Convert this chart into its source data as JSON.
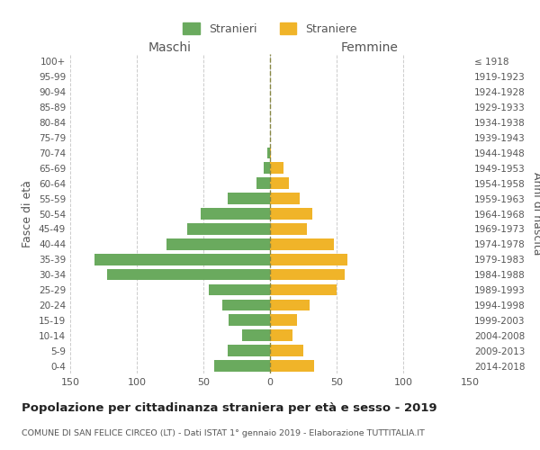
{
  "age_groups": [
    "100+",
    "95-99",
    "90-94",
    "85-89",
    "80-84",
    "75-79",
    "70-74",
    "65-69",
    "60-64",
    "55-59",
    "50-54",
    "45-49",
    "40-44",
    "35-39",
    "30-34",
    "25-29",
    "20-24",
    "15-19",
    "10-14",
    "5-9",
    "0-4"
  ],
  "birth_years": [
    "≤ 1918",
    "1919-1923",
    "1924-1928",
    "1929-1933",
    "1934-1938",
    "1939-1943",
    "1944-1948",
    "1949-1953",
    "1954-1958",
    "1959-1963",
    "1964-1968",
    "1969-1973",
    "1974-1978",
    "1979-1983",
    "1984-1988",
    "1989-1993",
    "1994-1998",
    "1999-2003",
    "2004-2008",
    "2009-2013",
    "2014-2018"
  ],
  "males": [
    0,
    0,
    0,
    0,
    0,
    0,
    2,
    5,
    10,
    32,
    52,
    62,
    78,
    132,
    122,
    46,
    36,
    31,
    21,
    32,
    42
  ],
  "females": [
    0,
    0,
    0,
    0,
    0,
    0,
    1,
    10,
    14,
    22,
    32,
    28,
    48,
    58,
    56,
    50,
    30,
    20,
    17,
    25,
    33
  ],
  "male_color": "#6aaa5e",
  "female_color": "#f0b429",
  "grid_color": "#cccccc",
  "center_line_color": "#888844",
  "bg_color": "#ffffff",
  "text_color": "#555555",
  "title": "Popolazione per cittadinanza straniera per età e sesso - 2019",
  "subtitle": "COMUNE DI SAN FELICE CIRCEO (LT) - Dati ISTAT 1° gennaio 2019 - Elaborazione TUTTITALIA.IT",
  "xlabel_left": "Maschi",
  "xlabel_right": "Femmine",
  "ylabel_left": "Fasce di età",
  "ylabel_right": "Anni di nascita",
  "legend_males": "Stranieri",
  "legend_females": "Straniere",
  "xlim": 150,
  "figsize": [
    6.0,
    5.0
  ],
  "dpi": 100
}
